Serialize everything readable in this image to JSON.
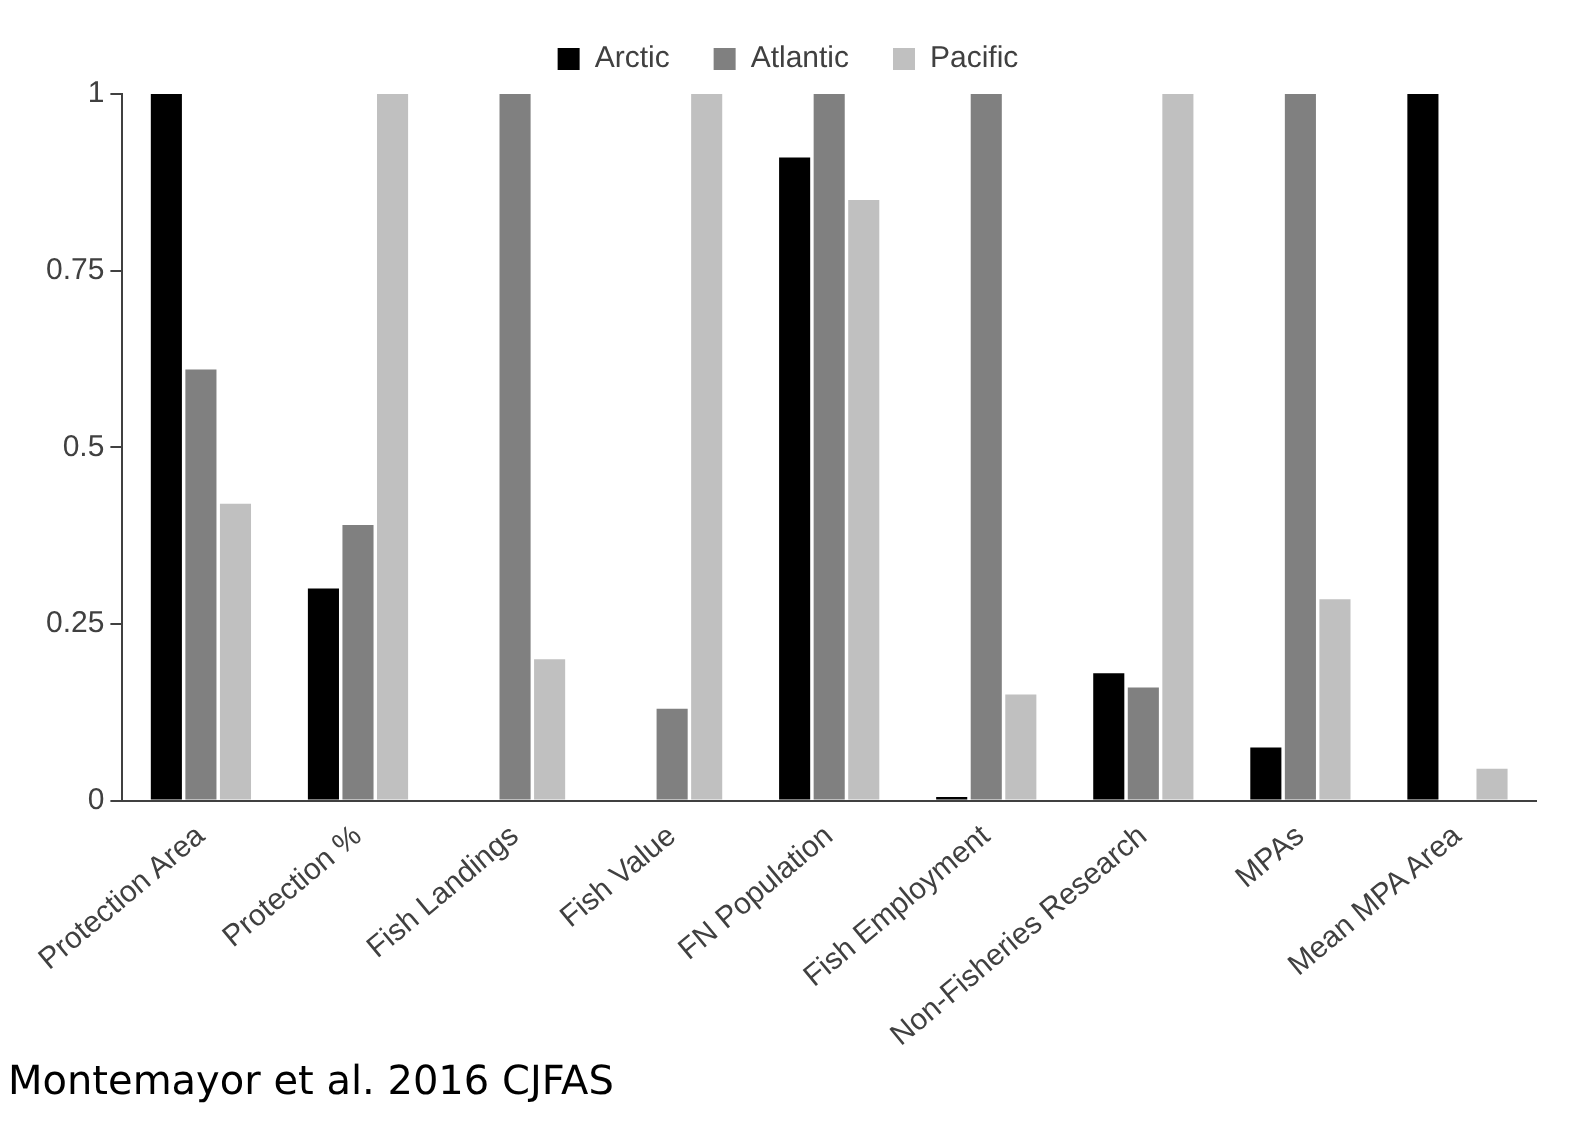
{
  "chart_data": {
    "type": "bar",
    "categories": [
      "Protection Area",
      "Protection %",
      "Fish Landings",
      "Fish Value",
      "FN Population",
      "Fish Employment",
      "Non-Fisheries Research",
      "MPAs",
      "Mean MPA Area"
    ],
    "series": [
      {
        "name": "Arctic",
        "color": "#000000",
        "values": [
          1,
          0.3,
          0,
          0,
          0.91,
          0.005,
          0.18,
          0.075,
          1
        ]
      },
      {
        "name": "Atlantic",
        "color": "#808080",
        "values": [
          0.61,
          0.39,
          1,
          0.13,
          1,
          1,
          0.16,
          1,
          0
        ]
      },
      {
        "name": "Pacific",
        "color": "#c0c0c0",
        "values": [
          0.42,
          1,
          0.2,
          1,
          0.85,
          0.15,
          1,
          0.285,
          0.045
        ]
      }
    ],
    "ylim": [
      0,
      1
    ],
    "yticks": [
      0,
      0.25,
      0.5,
      0.75,
      1
    ],
    "grid": false,
    "legend": "top",
    "annotations": [
      "Montemayor et al. 2016 CJFAS"
    ]
  }
}
